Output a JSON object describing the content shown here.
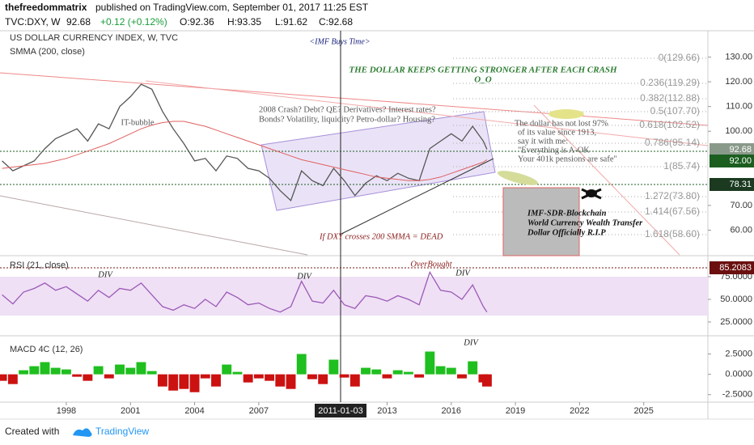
{
  "header": {
    "author": "thefreedommatrix",
    "published": "published on TradingView.com, September 01, 2017 11:25 EST",
    "symbol": "TVC:DXY, W",
    "last": "92.68",
    "change": "+0.12 (+0.12%)",
    "open": "O:92.36",
    "high": "H:93.35",
    "low": "L:91.62",
    "close": "C:92.68"
  },
  "footer": {
    "created": "Created with",
    "brand": "TradingView"
  },
  "crosshair_date": "2011-01-03",
  "fib_levels": [
    "0(129.66)",
    "0.236(119.29)",
    "0.382(112.88)",
    "0.5(107.70)",
    "0.618(102.52)",
    "0.786(95.14)",
    "1(85.74)",
    "1.272(73.80)",
    "1.414(67.56)",
    "1.618(58.60)"
  ],
  "price_badges": [
    "92.68",
    "92.00",
    "78.31",
    "85.2083"
  ],
  "annotations": [
    "<IMF Buys Time>",
    "THE DOLLAR KEEPS GETTING STRONGER AFTER EACH CRASH",
    "O_O",
    "IT-bubble",
    "2008 Crash? Debt? QE? Derivatives? Interest rates?",
    "Bonds? Volatility, liquidity? Petro-dollar? Housing?",
    "The dollar has not lost 97%",
    "of its value since 1913,",
    "say it with me:",
    "\"Everything is A-OK",
    "Your 401k pensions are safe\"",
    "IMF-SDR-Blockchain",
    "World Currency Wealth Transfer",
    "Dollar Officially R.I.P",
    "If DXY crosses 200 SMMA = DEAD",
    "DIV",
    "DIV",
    "OverBought",
    "DIV",
    "DIV"
  ],
  "chart_data": [
    {
      "type": "line",
      "title": "US DOLLAR CURRENCY INDEX, W, TVC",
      "x": [
        1995,
        1995.5,
        1996,
        1996.5,
        1997,
        1997.5,
        1998,
        1998.5,
        1999,
        1999.5,
        2000,
        2000.5,
        2001,
        2001.5,
        2002,
        2002.5,
        2003,
        2003.5,
        2004,
        2004.5,
        2005,
        2005.5,
        2006,
        2006.5,
        2007,
        2007.5,
        2008,
        2008.5,
        2009,
        2009.5,
        2010,
        2010.5,
        2011,
        2011.5,
        2012,
        2012.5,
        2013,
        2013.5,
        2014,
        2014.5,
        2015,
        2015.5,
        2016,
        2016.5,
        2017,
        2017.5,
        2017.67
      ],
      "series": [
        {
          "name": "US DOLLAR CURRENCY INDEX, W, TVC",
          "color": "#555555",
          "values": [
            88,
            84,
            86,
            88,
            93,
            97,
            99,
            101,
            96,
            103,
            101,
            110,
            114,
            119,
            117,
            108,
            101,
            95,
            88,
            89,
            84,
            90,
            89,
            85,
            84,
            81,
            76,
            72,
            84,
            80,
            78,
            85,
            80,
            74,
            79,
            82,
            80,
            83,
            81,
            80,
            93,
            96,
            99,
            96,
            102,
            96,
            92.68
          ]
        },
        {
          "name": "SMMA (200, close)",
          "color": "#e06060",
          "values": [
            85,
            85.5,
            86,
            86.5,
            87,
            88,
            89,
            90.5,
            92,
            93.5,
            95,
            97,
            99,
            101,
            102.5,
            103.5,
            104,
            104,
            103,
            102,
            100.5,
            99,
            97.5,
            96,
            94.5,
            93,
            91.5,
            90,
            88.5,
            87.5,
            86.5,
            85.5,
            84.5,
            83.5,
            82.5,
            81.5,
            81,
            80.5,
            80,
            80,
            80.5,
            81.5,
            83,
            84.5,
            86,
            87.5,
            88.5
          ]
        }
      ],
      "xlim": [
        1994.9,
        2028
      ],
      "ylim": [
        50,
        140
      ],
      "yticks": [
        {
          "value": 60,
          "label": "60.00"
        },
        {
          "value": 70,
          "label": "70.00"
        },
        {
          "value": 100,
          "label": "100.00"
        },
        {
          "value": 110,
          "label": "110.00"
        },
        {
          "value": 120,
          "label": "120.00"
        },
        {
          "value": 130,
          "label": "130.00"
        }
      ]
    },
    {
      "type": "line",
      "title": "RSI (21, close)",
      "x": [
        1995,
        1995.5,
        1996,
        1996.5,
        1997,
        1997.5,
        1998,
        1998.5,
        1999,
        1999.5,
        2000,
        2000.5,
        2001,
        2001.5,
        2002,
        2002.5,
        2003,
        2003.5,
        2004,
        2004.5,
        2005,
        2005.5,
        2006,
        2006.5,
        2007,
        2007.5,
        2008,
        2008.5,
        2009,
        2009.5,
        2010,
        2010.5,
        2011,
        2011.5,
        2012,
        2012.5,
        2013,
        2013.5,
        2014,
        2014.5,
        2015,
        2015.5,
        2016,
        2016.5,
        2017,
        2017.5,
        2017.67
      ],
      "series": [
        {
          "name": "RSI (21, close)",
          "color": "#9b59b6",
          "values": [
            55,
            45,
            58,
            62,
            68,
            60,
            64,
            56,
            48,
            60,
            52,
            62,
            60,
            68,
            55,
            42,
            38,
            44,
            40,
            50,
            42,
            58,
            52,
            44,
            46,
            40,
            36,
            42,
            70,
            48,
            46,
            60,
            44,
            40,
            54,
            52,
            48,
            54,
            50,
            44,
            80,
            60,
            58,
            50,
            66,
            42,
            36
          ]
        }
      ],
      "xlim": [
        1994.9,
        2028
      ],
      "ylim": [
        12.5,
        96.4
      ],
      "yticks": [
        {
          "value": 25,
          "label": "25.0000"
        },
        {
          "value": 50,
          "label": "50.0000"
        },
        {
          "value": 75,
          "label": "75.0000"
        }
      ]
    },
    {
      "type": "bar",
      "title": "MACD 4C (12, 26)",
      "x": [
        1995,
        1995.5,
        1996,
        1996.5,
        1997,
        1997.5,
        1998,
        1998.5,
        1999,
        1999.5,
        2000,
        2000.5,
        2001,
        2001.5,
        2002,
        2002.5,
        2003,
        2003.5,
        2004,
        2004.5,
        2005,
        2005.5,
        2006,
        2006.5,
        2007,
        2007.5,
        2008,
        2008.5,
        2009,
        2009.5,
        2010,
        2010.5,
        2011,
        2011.5,
        2012,
        2012.5,
        2013,
        2013.5,
        2014,
        2014.5,
        2015,
        2015.5,
        2016,
        2016.5,
        2017,
        2017.5,
        2017.67
      ],
      "values": [
        -0.8,
        -1.2,
        0.5,
        1.0,
        1.5,
        0.8,
        0.6,
        -0.3,
        -0.8,
        1.0,
        -0.5,
        1.2,
        0.8,
        1.5,
        0.4,
        -1.5,
        -2.0,
        -1.8,
        -2.2,
        -0.5,
        -1.5,
        1.2,
        0.3,
        -1.0,
        -0.5,
        -0.8,
        -1.5,
        -1.8,
        2.5,
        -0.6,
        -1.2,
        1.8,
        -0.4,
        -1.5,
        0.8,
        0.6,
        -0.5,
        0.5,
        0.3,
        -0.4,
        2.8,
        1.0,
        0.8,
        -0.5,
        1.6,
        -1.0,
        -1.5
      ],
      "up_color": "#1fbf1f",
      "down_color": "#cc1111",
      "xlim": [
        1994.9,
        2028
      ],
      "ylim": [
        -3.42,
        4.54
      ],
      "yticks": [
        {
          "value": -2.5,
          "label": "-2.5000"
        },
        {
          "value": 0,
          "label": "0.0000"
        },
        {
          "value": 2.5,
          "label": "2.5000"
        }
      ],
      "xticks": [
        1998,
        2001,
        2004,
        2007,
        2013,
        2016,
        2019,
        2022,
        2025
      ]
    }
  ]
}
